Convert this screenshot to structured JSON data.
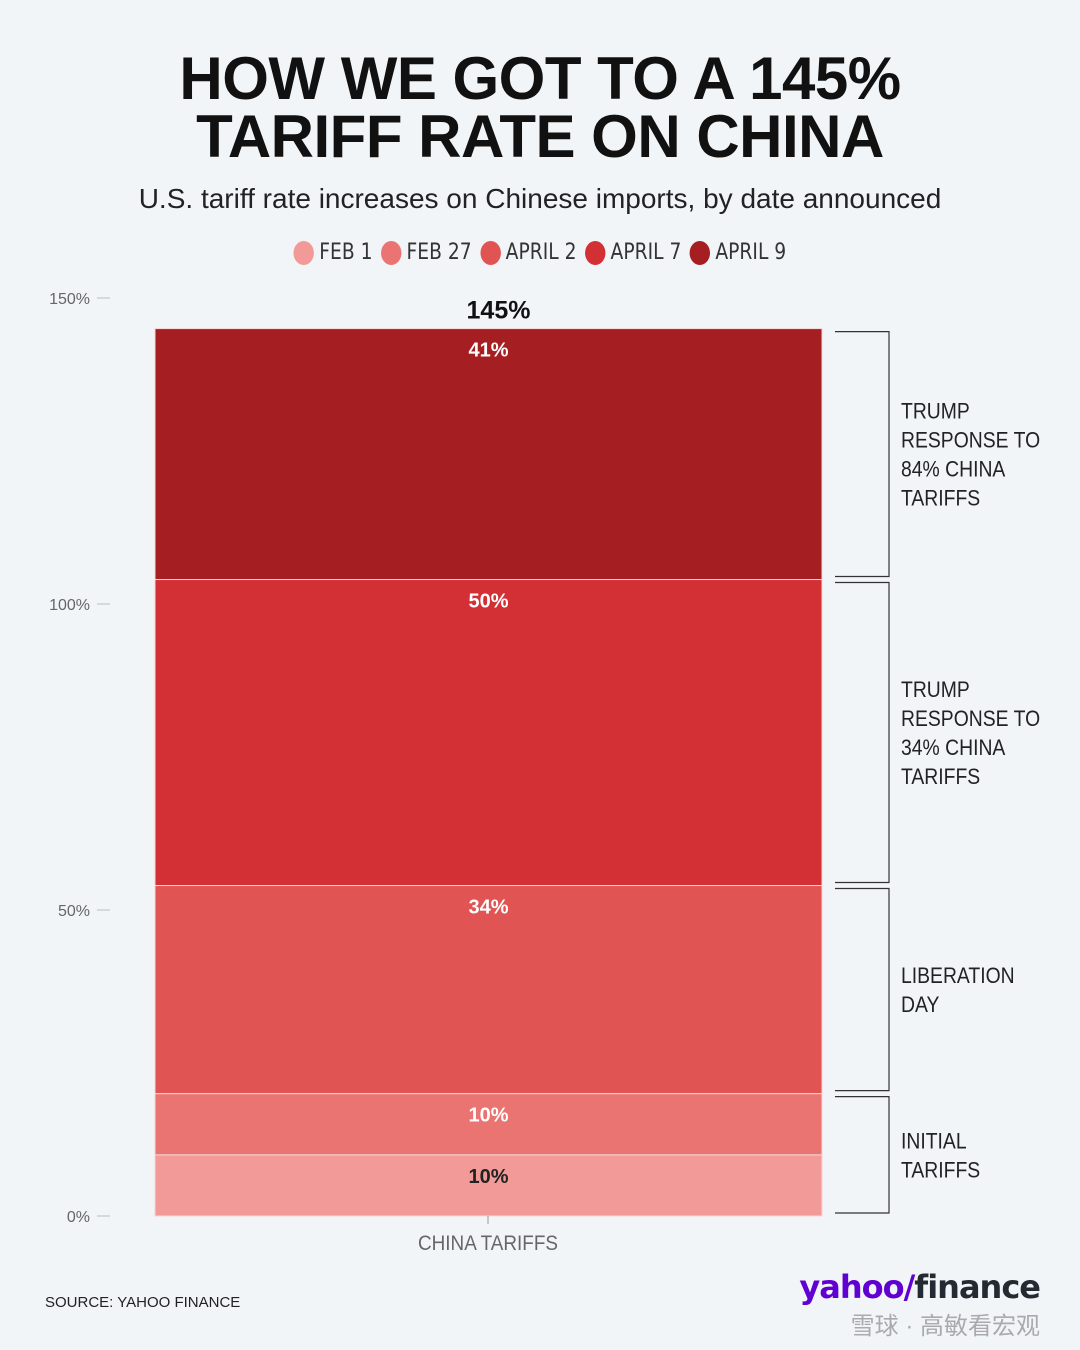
{
  "title_line1": "HOW WE GOT TO A 145%",
  "title_line2": "TARIFF RATE ON CHINA",
  "subtitle": "U.S. tariff rate increases on Chinese imports, by date announced",
  "source": "SOURCE:  YAHOO FINANCE",
  "logo": {
    "yahoo": "yahoo",
    "slash": "/",
    "finance": "finance"
  },
  "watermark": "雪球 · 高敏看宏观",
  "chart_data": {
    "type": "bar",
    "stacked": true,
    "categories": [
      "CHINA TARIFFS"
    ],
    "ylim": [
      0,
      150
    ],
    "yticks": [
      "0%",
      "50%",
      "100%",
      "150%"
    ],
    "ytick_values": [
      0,
      50,
      100,
      150
    ],
    "total_label": "145%",
    "legend_position": "top",
    "series": [
      {
        "name": "FEB 1",
        "values": [
          10
        ],
        "label": "10%",
        "color": "#f29a98"
      },
      {
        "name": "FEB 27",
        "values": [
          10
        ],
        "label": "10%",
        "color": "#ea7472"
      },
      {
        "name": "APRIL 2",
        "values": [
          34
        ],
        "label": "34%",
        "color": "#e05453"
      },
      {
        "name": "APRIL 7",
        "values": [
          50
        ],
        "label": "50%",
        "color": "#d33035"
      },
      {
        "name": "APRIL 9",
        "values": [
          41
        ],
        "label": "41%",
        "color": "#a51f22"
      }
    ],
    "annotations": [
      {
        "from": 0,
        "to": 20,
        "text": [
          "INITIAL",
          "TARIFFS"
        ]
      },
      {
        "from": 20,
        "to": 54,
        "text": [
          "LIBERATION",
          "DAY"
        ]
      },
      {
        "from": 54,
        "to": 104,
        "text": [
          "TRUMP",
          "RESPONSE TO",
          "34% CHINA",
          "TARIFFS"
        ]
      },
      {
        "from": 104,
        "to": 145,
        "text": [
          "TRUMP",
          "RESPONSE TO",
          "84% CHINA",
          "TARIFFS"
        ]
      }
    ]
  }
}
